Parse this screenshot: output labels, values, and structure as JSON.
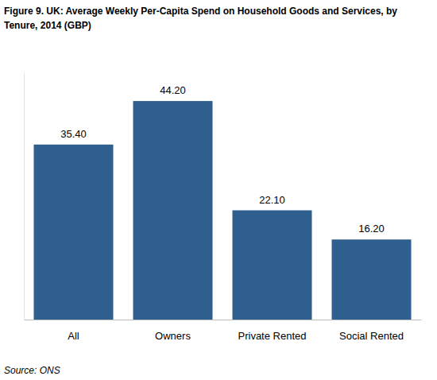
{
  "chart_data": {
    "type": "bar",
    "title": "Figure 9. UK: Average Weekly Per-Capita Spend on Household Goods and Services, by Tenure, 2014 (GBP)",
    "source": "Source: ONS",
    "categories": [
      "All",
      "Owners",
      "Private Rented",
      "Social Rented"
    ],
    "values": [
      35.4,
      44.2,
      22.1,
      16.2
    ],
    "value_labels": [
      "35.40",
      "44.20",
      "22.10",
      "16.20"
    ],
    "color": "#2e5f8f",
    "ylim": [
      0,
      50
    ],
    "grid": false,
    "data_labels": true,
    "tick_labels": "x"
  }
}
